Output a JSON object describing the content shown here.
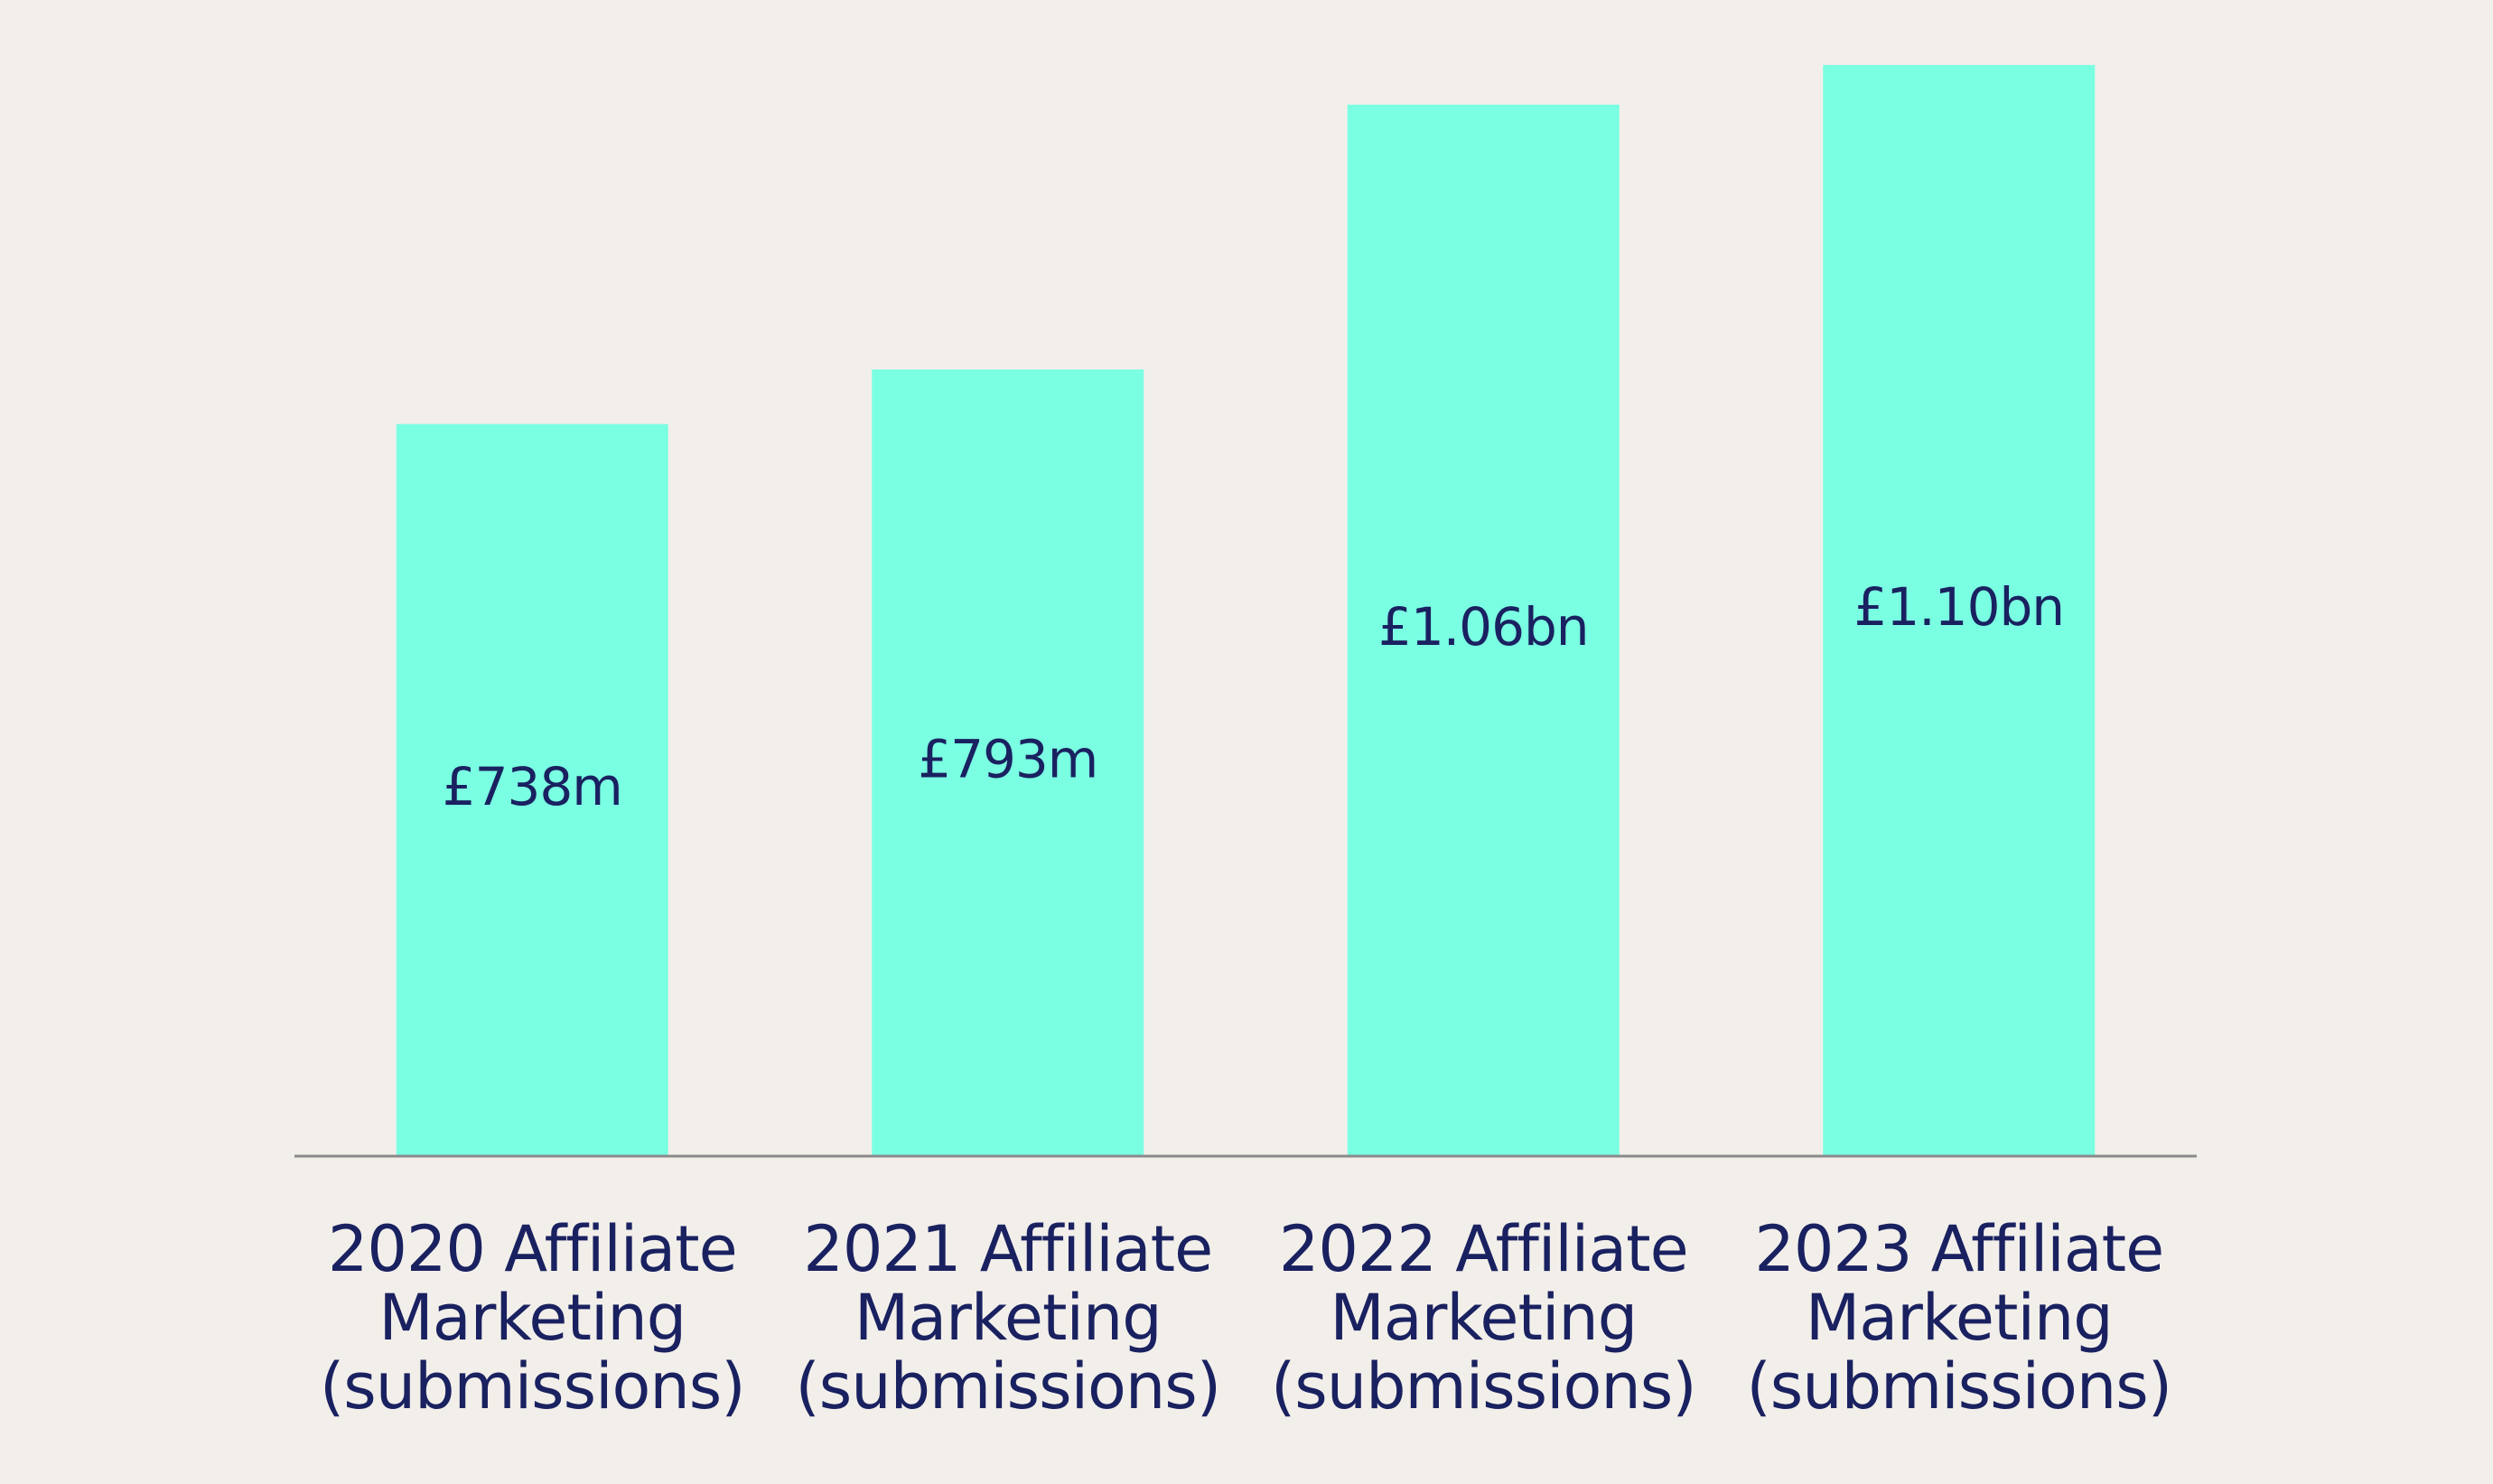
{
  "chart_data": {
    "type": "bar",
    "categories": [
      "2020 Affiliate Marketing (submissions)",
      "2021 Affiliate Marketing (submissions)",
      "2022 Affiliate Marketing (submissions)",
      "2023 Affiliate Marketing (submissions)"
    ],
    "values": [
      738,
      793,
      1060,
      1100
    ],
    "value_labels": [
      "£738m",
      "£793m",
      "£1.06bn",
      "£1.10bn"
    ],
    "color": "#7affe2",
    "ylim": [
      0,
      1150
    ]
  }
}
